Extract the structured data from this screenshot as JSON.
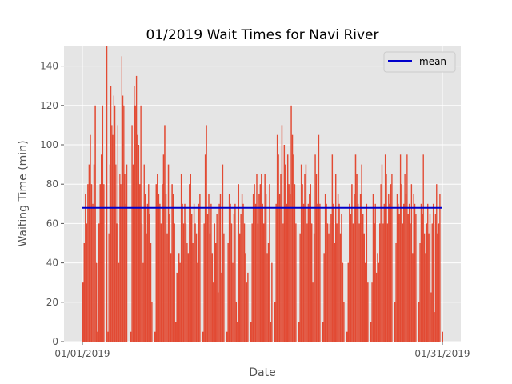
{
  "chart_data": {
    "type": "bar",
    "title": "01/2019 Wait Times for Navi River",
    "xlabel": "Date",
    "ylabel": "Waiting Time (min)",
    "xlim": [
      "01/01/2019",
      "01/31/2019"
    ],
    "ylim": [
      0,
      150
    ],
    "x_ticks": [
      "01/01/2019",
      "01/31/2019"
    ],
    "y_ticks": [
      0,
      20,
      40,
      60,
      80,
      100,
      120,
      140
    ],
    "grid": true,
    "legend": {
      "position": "top-right",
      "entries": [
        "mean"
      ]
    },
    "colors": {
      "bars": "#E24A33",
      "mean_line": "#0000CC",
      "plot_bg": "#E5E5E5",
      "grid": "#FFFFFF"
    },
    "mean": 68,
    "days": [
      {
        "date": "01/01/2019",
        "values": [
          30,
          50,
          75,
          60,
          80,
          90,
          105,
          80,
          70,
          90,
          120,
          40,
          5,
          60,
          80,
          95,
          120,
          80
        ]
      },
      {
        "date": "01/02/2019",
        "values": [
          150,
          5,
          55,
          90,
          130,
          110,
          105,
          125,
          120,
          90,
          60,
          110,
          40,
          85,
          80,
          145,
          125,
          120,
          85,
          70,
          90
        ]
      },
      {
        "date": "01/03/2019",
        "values": [
          5,
          110,
          90,
          130,
          120,
          135,
          105,
          100,
          80,
          120,
          60,
          40,
          90,
          75,
          55,
          70,
          80,
          65,
          50,
          20
        ]
      },
      {
        "date": "01/04/2019",
        "values": [
          5,
          80,
          85,
          75,
          70,
          60,
          80,
          95,
          110,
          75,
          55,
          90,
          65,
          45,
          80,
          75,
          60,
          10,
          35
        ]
      },
      {
        "date": "01/05/2019",
        "values": [
          45,
          40,
          85,
          70,
          60,
          70,
          60,
          50,
          45,
          80,
          85,
          65,
          50,
          70,
          60,
          55,
          40,
          70,
          75
        ]
      },
      {
        "date": "01/06/2019",
        "values": [
          5,
          60,
          95,
          110,
          65,
          75,
          55,
          70,
          45,
          30,
          60,
          50,
          65,
          25,
          70,
          75,
          35,
          90,
          55
        ]
      },
      {
        "date": "01/07/2019",
        "values": [
          5,
          50,
          75,
          70,
          60,
          40,
          65,
          70,
          20,
          10,
          80,
          55,
          65,
          75,
          70,
          60,
          45,
          30,
          35
        ]
      },
      {
        "date": "01/08/2019",
        "values": [
          10,
          60,
          75,
          80,
          70,
          85,
          60,
          75,
          80,
          85,
          70,
          60,
          85,
          75,
          45,
          50,
          80,
          10,
          40
        ]
      },
      {
        "date": "01/09/2019",
        "values": [
          20,
          70,
          105,
          95,
          75,
          85,
          110,
          60,
          100,
          90,
          70,
          95,
          80,
          75,
          120,
          105,
          95,
          80,
          60
        ]
      },
      {
        "date": "01/10/2019",
        "values": [
          10,
          55,
          90,
          80,
          70,
          85,
          90,
          60,
          70,
          75,
          80,
          60,
          30,
          55,
          95,
          85,
          70,
          105,
          70
        ]
      },
      {
        "date": "01/11/2019",
        "values": [
          10,
          45,
          75,
          70,
          60,
          55,
          60,
          65,
          95,
          70,
          50,
          85,
          60,
          75,
          70,
          55,
          65,
          40,
          20
        ]
      },
      {
        "date": "01/12/2019",
        "values": [
          5,
          40,
          70,
          65,
          80,
          60,
          75,
          95,
          85,
          70,
          60,
          75,
          90,
          65,
          55,
          40,
          70,
          30
        ]
      },
      {
        "date": "01/13/2019",
        "values": [
          10,
          30,
          75,
          60,
          70,
          35,
          45,
          40,
          60,
          80,
          90,
          60,
          70,
          95,
          85,
          60,
          75,
          70,
          80,
          85
        ]
      },
      {
        "date": "01/14/2019",
        "values": [
          20,
          50,
          75,
          70,
          65,
          95,
          80,
          60,
          70,
          85,
          75,
          95,
          65,
          70,
          60,
          80,
          45,
          75,
          70,
          65
        ]
      },
      {
        "date": "01/15/2019",
        "values": [
          20,
          50,
          70,
          65,
          95,
          55,
          45,
          60,
          70,
          55,
          65,
          25,
          60,
          70,
          15,
          65,
          80,
          55,
          60,
          75
        ]
      },
      {
        "date": "01/16/2019",
        "values": [
          5
        ]
      }
    ]
  }
}
